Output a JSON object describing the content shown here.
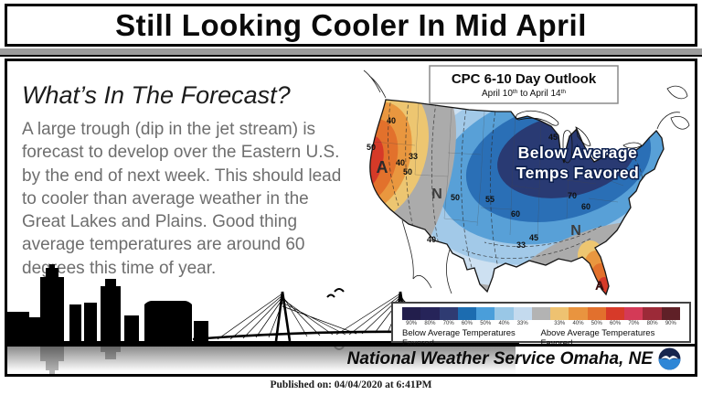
{
  "title": "Still Looking Cooler In Mid April",
  "left_panel": {
    "heading": "What’s In The Forecast?",
    "body": "A large trough (dip in the jet stream) is forecast to develop over the Eastern U.S. by the end of next week. This should lead to cooler than average weather in the Great Lakes and Plains. Good thing average temperatures are around 60 degrees this time of year."
  },
  "map": {
    "outlook_box": {
      "line1": "CPC 6-10 Day Outlook",
      "line2_p1": "April 10",
      "line2_s1": "th",
      "line2_p2": " to April 14",
      "line2_s2": "th"
    },
    "annotation": {
      "line1": "Below Average",
      "line2": "Temps Favored"
    },
    "letters": [
      {
        "ch": "A"
      },
      {
        "ch": "N"
      },
      {
        "ch": "N"
      },
      {
        "ch": "A"
      }
    ],
    "contour_labels": [
      {
        "t": "40"
      },
      {
        "t": "50"
      },
      {
        "t": "33"
      },
      {
        "t": "40"
      },
      {
        "t": "50"
      },
      {
        "t": "50"
      },
      {
        "t": "55"
      },
      {
        "t": "60"
      },
      {
        "t": "40"
      },
      {
        "t": "45"
      },
      {
        "t": "70"
      },
      {
        "t": "60"
      },
      {
        "t": "33"
      },
      {
        "t": "45"
      }
    ],
    "palette": {
      "normal_gray": "#ababab",
      "below_shades": [
        "#cde0f1",
        "#a2c9e8",
        "#58a0d7",
        "#2a6fb6",
        "#293a73"
      ],
      "above_shades": [
        "#edc671",
        "#e9973f",
        "#e2712c",
        "#d63a28"
      ]
    }
  },
  "legend": {
    "cells": [
      {
        "pct": "90%",
        "color": "#221e4c"
      },
      {
        "pct": "80%",
        "color": "#262459"
      },
      {
        "pct": "70%",
        "color": "#2f3b72"
      },
      {
        "pct": "60%",
        "color": "#1c6cb0"
      },
      {
        "pct": "50%",
        "color": "#4a9eda"
      },
      {
        "pct": "40%",
        "color": "#99c7e6"
      },
      {
        "pct": "33%",
        "color": "#c4daee"
      },
      {
        "pct": "",
        "color": "#b3b3b3"
      },
      {
        "pct": "33%",
        "color": "#eec271"
      },
      {
        "pct": "40%",
        "color": "#e9943f"
      },
      {
        "pct": "50%",
        "color": "#e2702d"
      },
      {
        "pct": "60%",
        "color": "#d73a29"
      },
      {
        "pct": "70%",
        "color": "#d43a57"
      },
      {
        "pct": "80%",
        "color": "#9c2a38"
      },
      {
        "pct": "90%",
        "color": "#5f2027"
      }
    ],
    "below_caption": "Below Average Temperatures Favored",
    "above_caption": "Above Average Temperatures Favored"
  },
  "footer": {
    "agency": "National Weather Service Omaha, NE"
  },
  "published": "Published on: 04/04/2020 at 6:41PM"
}
